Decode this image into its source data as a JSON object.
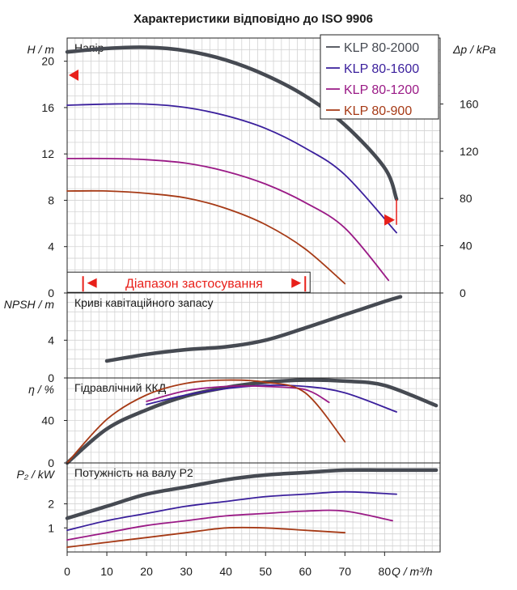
{
  "chart_data": {
    "title": "Характеристики відповідно до ISO 9906",
    "type": "line",
    "x_axis": {
      "label": "Q / m³/h",
      "ticks": [
        0,
        10,
        20,
        30,
        40,
        50,
        60,
        70,
        80
      ],
      "range": [
        0,
        94
      ]
    },
    "colors": {
      "KLP 80-2000": "#464a52",
      "KLP 80-1600": "#3a1f9c",
      "KLP 80-1200": "#9a1a86",
      "KLP 80-900": "#a63a16",
      "marker": "#e8201a",
      "grid": "#d3d3d3"
    },
    "legend": [
      "KLP 80-2000",
      "KLP 80-1600",
      "KLP 80-1200",
      "KLP 80-900"
    ],
    "panels": [
      {
        "id": "head",
        "panel_label": "Напір",
        "ylabel": "H / m",
        "ylim": [
          0,
          22
        ],
        "yticks": [
          0,
          4,
          8,
          12,
          16,
          20
        ],
        "right_axis": {
          "label": "Δp / kPa",
          "ticks": [
            0,
            40,
            80,
            120,
            160
          ]
        },
        "series": [
          {
            "name": "KLP 80-2000",
            "x": [
              0,
              10,
              20,
              30,
              40,
              50,
              60,
              70,
              80,
              83
            ],
            "y": [
              20.8,
              21.1,
              21.2,
              20.9,
              20.1,
              18.8,
              17.0,
              14.5,
              10.8,
              8.1
            ]
          },
          {
            "name": "KLP 80-1600",
            "x": [
              0,
              10,
              20,
              30,
              40,
              50,
              60,
              70,
              83
            ],
            "y": [
              16.2,
              16.3,
              16.3,
              16.0,
              15.3,
              14.2,
              12.5,
              10.2,
              5.2
            ]
          },
          {
            "name": "KLP 80-1200",
            "x": [
              0,
              10,
              20,
              30,
              40,
              50,
              60,
              70,
              81
            ],
            "y": [
              11.6,
              11.6,
              11.5,
              11.2,
              10.5,
              9.4,
              7.8,
              5.6,
              1.1
            ]
          },
          {
            "name": "KLP 80-900",
            "x": [
              0,
              10,
              20,
              30,
              40,
              50,
              60,
              70
            ],
            "y": [
              8.8,
              8.8,
              8.6,
              8.2,
              7.3,
              5.9,
              3.8,
              0.8
            ]
          }
        ],
        "operating_range": {
          "label": "Діапазон застосування",
          "x_start": 4,
          "x_end": 60
        },
        "duty_markers": [
          {
            "side": "left",
            "y": 18.8
          },
          {
            "side": "right",
            "y": 6.3
          }
        ]
      },
      {
        "id": "npsh",
        "panel_label": "Криві кавітаційного запасу",
        "ylabel": "NPSH / m",
        "ylim": [
          0,
          9
        ],
        "yticks": [
          0,
          4
        ],
        "series": [
          {
            "name": "KLP 80-2000",
            "x": [
              10,
              20,
              30,
              40,
              50,
              60,
              70,
              80,
              84
            ],
            "y": [
              1.8,
              2.5,
              3.0,
              3.3,
              4.0,
              5.3,
              6.7,
              8.1,
              8.6
            ]
          }
        ]
      },
      {
        "id": "efficiency",
        "panel_label": "Гідравлічний ККД",
        "ylabel": "η / %",
        "ylim": [
          0,
          80
        ],
        "yticks": [
          0,
          40
        ],
        "series": [
          {
            "name": "KLP 80-2000",
            "x": [
              0,
              10,
              20,
              30,
              40,
              50,
              60,
              70,
              80,
              93
            ],
            "y": [
              0,
              32,
              50,
              63,
              71,
              76,
              78,
              77,
              73,
              54
            ]
          },
          {
            "name": "KLP 80-1600",
            "x": [
              20,
              30,
              40,
              50,
              60,
              70,
              83
            ],
            "y": [
              55,
              64,
              70,
              73,
              72,
              66,
              48
            ]
          },
          {
            "name": "KLP 80-1200",
            "x": [
              20,
              30,
              40,
              50,
              60,
              66
            ],
            "y": [
              58,
              68,
              72,
              72,
              69,
              57
            ]
          },
          {
            "name": "KLP 80-900",
            "x": [
              0,
              10,
              20,
              30,
              40,
              50,
              60,
              70
            ],
            "y": [
              0,
              41,
              64,
              75,
              78,
              76,
              66,
              20
            ]
          }
        ]
      },
      {
        "id": "power",
        "panel_label": "Потужність на валу P2",
        "ylabel": "P₂ / kW",
        "ylim": [
          0,
          3.7
        ],
        "yticks": [
          1,
          2
        ],
        "series": [
          {
            "name": "KLP 80-2000",
            "x": [
              0,
              10,
              20,
              30,
              40,
              50,
              60,
              70,
              80,
              93
            ],
            "y": [
              1.4,
              1.9,
              2.4,
              2.7,
              3.0,
              3.2,
              3.3,
              3.4,
              3.4,
              3.4
            ]
          },
          {
            "name": "KLP 80-1600",
            "x": [
              0,
              10,
              20,
              30,
              40,
              50,
              60,
              70,
              83
            ],
            "y": [
              0.9,
              1.3,
              1.6,
              1.9,
              2.1,
              2.3,
              2.4,
              2.5,
              2.4
            ]
          },
          {
            "name": "KLP 80-1200",
            "x": [
              0,
              10,
              20,
              30,
              40,
              50,
              60,
              70,
              82
            ],
            "y": [
              0.5,
              0.8,
              1.1,
              1.3,
              1.5,
              1.6,
              1.7,
              1.7,
              1.3
            ]
          },
          {
            "name": "KLP 80-900",
            "x": [
              0,
              10,
              20,
              30,
              40,
              50,
              60,
              70
            ],
            "y": [
              0.2,
              0.4,
              0.6,
              0.8,
              1.0,
              1.0,
              0.9,
              0.8
            ]
          }
        ]
      }
    ]
  }
}
